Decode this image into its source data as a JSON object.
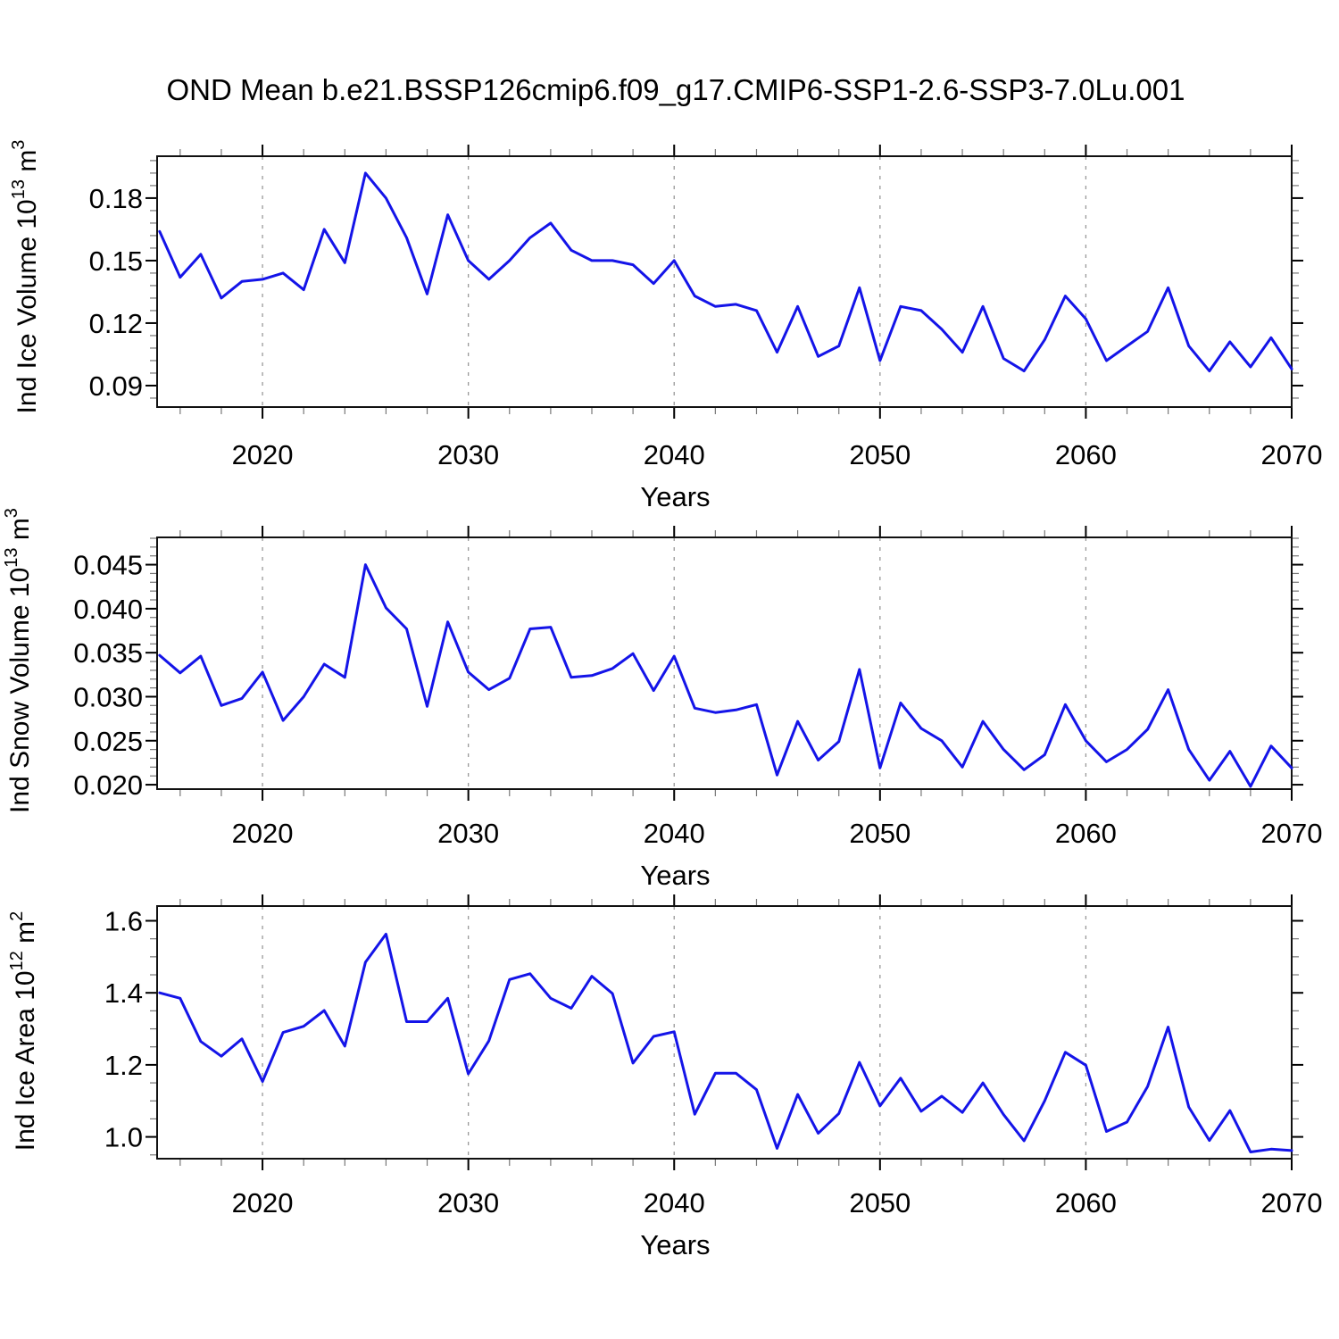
{
  "title": "OND Mean b.e21.BSSP126cmip6.f09_g17.CMIP6-SSP1-2.6-SSP3-7.0Lu.001",
  "line_color": "#1414e8",
  "axis_color": "#000000",
  "gridline_color": "#999999",
  "years": [
    2015,
    2016,
    2017,
    2018,
    2019,
    2020,
    2021,
    2022,
    2023,
    2024,
    2025,
    2026,
    2027,
    2028,
    2029,
    2030,
    2031,
    2032,
    2033,
    2034,
    2035,
    2036,
    2037,
    2038,
    2039,
    2040,
    2041,
    2042,
    2043,
    2044,
    2045,
    2046,
    2047,
    2048,
    2049,
    2050,
    2051,
    2052,
    2053,
    2054,
    2055,
    2056,
    2057,
    2058,
    2059,
    2060,
    2061,
    2062,
    2063,
    2064,
    2065,
    2066,
    2067,
    2068,
    2069,
    2070
  ],
  "xlabel": "Years",
  "xlim": [
    2014.88,
    2070
  ],
  "xticks": {
    "values": [
      2020,
      2030,
      2040,
      2050,
      2060,
      2070
    ],
    "labels": [
      "2020",
      "2030",
      "2040",
      "2050",
      "2060",
      "2070"
    ],
    "minor_step": 2
  },
  "grid_years": [
    2020,
    2030,
    2040,
    2050,
    2060
  ],
  "chart_data": [
    {
      "type": "line",
      "name": "ind-ice-volume",
      "ylabel": {
        "base1": "Ind Ice Volume 10",
        "sup1": "13",
        "base2": " m",
        "sup2": "3"
      },
      "ylim": [
        0.0797,
        0.2001
      ],
      "yticks": {
        "values": [
          0.18,
          0.15,
          0.12,
          0.09
        ],
        "labels": [
          "0.18",
          "0.15",
          "0.12",
          "0.09"
        ],
        "minor_step": 0.006,
        "major_step": 0.03
      },
      "values": [
        0.164,
        0.142,
        0.153,
        0.132,
        0.14,
        0.141,
        0.144,
        0.136,
        0.165,
        0.149,
        0.192,
        0.18,
        0.161,
        0.134,
        0.172,
        0.15,
        0.141,
        0.15,
        0.161,
        0.168,
        0.155,
        0.15,
        0.15,
        0.148,
        0.139,
        0.15,
        0.133,
        0.128,
        0.129,
        0.126,
        0.106,
        0.128,
        0.104,
        0.109,
        0.137,
        0.102,
        0.128,
        0.126,
        0.117,
        0.106,
        0.128,
        0.103,
        0.097,
        0.112,
        0.133,
        0.122,
        0.102,
        0.109,
        0.116,
        0.137,
        0.109,
        0.097,
        0.111,
        0.099,
        0.113,
        0.098
      ]
    },
    {
      "type": "line",
      "name": "ind-snow-volume",
      "ylabel": {
        "base1": "Ind Snow Volume 10",
        "sup1": "13",
        "base2": " m",
        "sup2": "3"
      },
      "ylim": [
        0.0195,
        0.0481
      ],
      "yticks": {
        "values": [
          0.045,
          0.04,
          0.035,
          0.03,
          0.025,
          0.02
        ],
        "labels": [
          "0.045",
          "0.040",
          "0.035",
          "0.030",
          "0.025",
          "0.020"
        ],
        "minor_step": 0.001,
        "major_step": 0.005
      },
      "values": [
        0.0347,
        0.0327,
        0.0346,
        0.029,
        0.0298,
        0.0328,
        0.0273,
        0.03,
        0.0337,
        0.0322,
        0.045,
        0.0401,
        0.0377,
        0.0289,
        0.0385,
        0.0328,
        0.0308,
        0.0321,
        0.0377,
        0.0379,
        0.0322,
        0.0324,
        0.0332,
        0.0349,
        0.0307,
        0.0346,
        0.0287,
        0.0282,
        0.0285,
        0.0291,
        0.0211,
        0.0272,
        0.0228,
        0.0249,
        0.0331,
        0.0219,
        0.0293,
        0.0264,
        0.025,
        0.022,
        0.0272,
        0.024,
        0.0217,
        0.0234,
        0.0291,
        0.025,
        0.0226,
        0.024,
        0.0263,
        0.0308,
        0.024,
        0.0205,
        0.0238,
        0.0198,
        0.0244,
        0.0219
      ]
    },
    {
      "type": "line",
      "name": "ind-ice-area",
      "ylabel": {
        "base1": "Ind Ice Area 10",
        "sup1": "12",
        "base2": " m",
        "sup2": "2"
      },
      "ylim": [
        0.9395,
        1.6409
      ],
      "yticks": {
        "values": [
          1.6,
          1.4,
          1.2,
          1.0
        ],
        "labels": [
          "1.6",
          "1.4",
          "1.2",
          "1.0"
        ],
        "minor_step": 0.05,
        "major_step": 0.2
      },
      "values": [
        1.4,
        1.385,
        1.265,
        1.224,
        1.272,
        1.154,
        1.29,
        1.307,
        1.351,
        1.252,
        1.485,
        1.563,
        1.32,
        1.32,
        1.385,
        1.175,
        1.267,
        1.437,
        1.453,
        1.385,
        1.357,
        1.446,
        1.398,
        1.205,
        1.279,
        1.292,
        1.063,
        1.177,
        1.177,
        1.131,
        0.968,
        1.118,
        1.01,
        1.065,
        1.207,
        1.086,
        1.163,
        1.071,
        1.113,
        1.068,
        1.15,
        1.062,
        0.989,
        1.1,
        1.235,
        1.199,
        1.015,
        1.041,
        1.14,
        1.305,
        1.083,
        0.99,
        1.073,
        0.958,
        0.966,
        0.962
      ]
    }
  ]
}
